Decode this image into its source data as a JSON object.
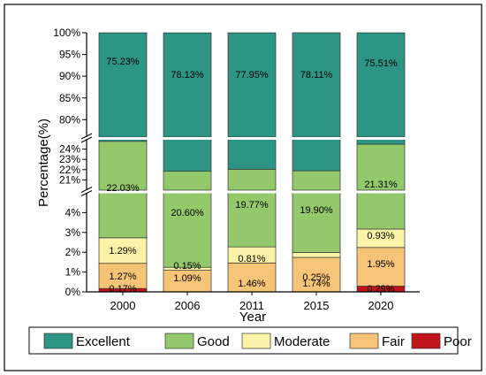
{
  "chart_data": {
    "type": "bar",
    "stacked": true,
    "broken_axis": true,
    "xlabel": "Year",
    "ylabel": "Percentage(%)",
    "categories": [
      "2000",
      "2006",
      "2011",
      "2015",
      "2020"
    ],
    "series": [
      {
        "name": "Poor",
        "color": "#c0141a",
        "values": [
          0.17,
          0.0,
          0.0,
          0.0,
          0.29
        ]
      },
      {
        "name": "Fair",
        "color": "#f6c477",
        "values": [
          1.27,
          1.09,
          1.46,
          1.74,
          1.95
        ]
      },
      {
        "name": "Moderate",
        "color": "#fbf3a8",
        "values": [
          1.29,
          0.15,
          0.81,
          0.25,
          0.93
        ]
      },
      {
        "name": "Good",
        "color": "#93c96b",
        "values": [
          22.03,
          20.6,
          19.77,
          19.9,
          21.31
        ]
      },
      {
        "name": "Excellent",
        "color": "#2e9584",
        "values": [
          75.23,
          78.13,
          77.95,
          78.11,
          75.51
        ]
      }
    ],
    "data_labels": [
      [
        "0.17%",
        "1.27%",
        "1.29%",
        "22.03%",
        "75.23%"
      ],
      [
        "",
        "1.09%",
        "0.15%",
        "20.60%",
        "78.13%"
      ],
      [
        "",
        "1.46%",
        "0.81%",
        "19.77%",
        "77.95%"
      ],
      [
        "",
        "1.74%",
        "0.25%",
        "19.90%",
        "78.11%"
      ],
      [
        "0.29%",
        "1.95%",
        "0.93%",
        "21.31%",
        "75.51%"
      ]
    ],
    "y_segments": [
      {
        "range": [
          0,
          5
        ],
        "ticks": [
          "0%",
          "1%",
          "2%",
          "3%",
          "4%"
        ]
      },
      {
        "range": [
          20,
          25
        ],
        "ticks": [
          "21%",
          "22%",
          "23%",
          "24%"
        ]
      },
      {
        "range": [
          76,
          100
        ],
        "ticks": [
          "80%",
          "85%",
          "90%",
          "95%",
          "100%"
        ]
      }
    ],
    "legend": {
      "position": "bottom",
      "order": [
        "Excellent",
        "Good",
        "Moderate",
        "Fair",
        "Poor"
      ]
    }
  }
}
